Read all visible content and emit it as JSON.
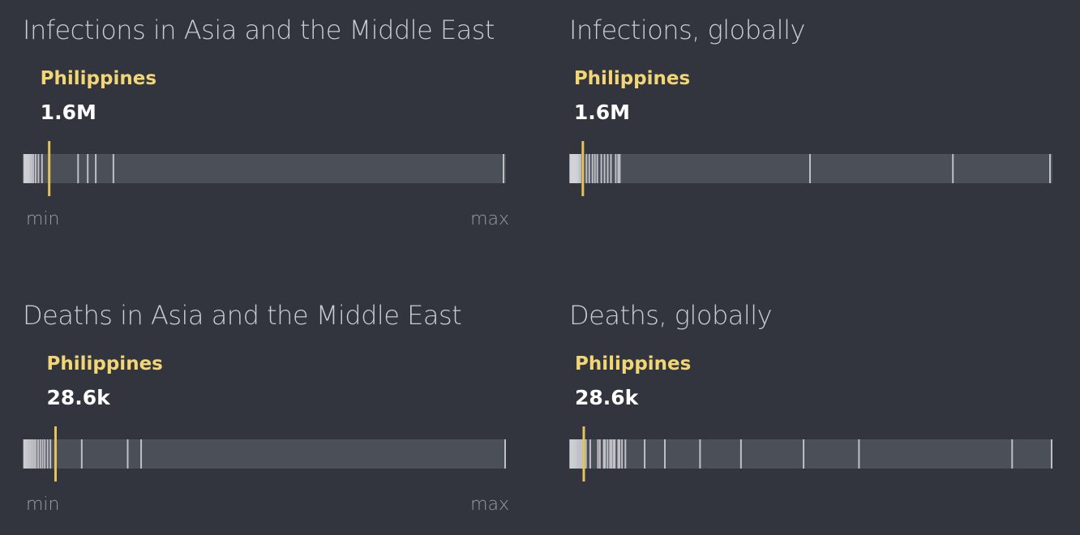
{
  "chart_data": [
    {
      "type": "strip",
      "title": "Infections in Asia and the Middle East",
      "highlight": {
        "label": "Philippines",
        "value_label": "1.6M",
        "value": 1600000
      },
      "axis_labels": {
        "min": "min",
        "max": "max"
      },
      "xlim": [
        0,
        30000000
      ],
      "values": [
        40000,
        90000,
        140000,
        190000,
        240000,
        300000,
        360000,
        430000,
        520000,
        620000,
        760000,
        930000,
        1150000,
        1600000,
        3400000,
        4000000,
        4500000,
        5600000,
        29900000
      ]
    },
    {
      "type": "strip",
      "title": "Infections, globally",
      "highlight": {
        "label": "Philippines",
        "value_label": "1.6M",
        "value": 1600000
      },
      "axis_labels": {
        "min": "",
        "max": ""
      },
      "xlim": [
        0,
        60000000
      ],
      "values": [
        30000,
        80000,
        130000,
        180000,
        230000,
        280000,
        330000,
        380000,
        440000,
        500000,
        570000,
        640000,
        720000,
        800000,
        900000,
        1000000,
        1150000,
        1300000,
        1600000,
        2050000,
        2400000,
        2800000,
        3100000,
        3400000,
        3900000,
        4300000,
        4700000,
        5100000,
        5700000,
        6000000,
        6200000,
        29900000,
        47700000,
        59800000
      ]
    },
    {
      "type": "strip",
      "title": "Deaths in Asia and the Middle East",
      "highlight": {
        "label": "Philippines",
        "value_label": "28.6k",
        "value": 28600
      },
      "axis_labels": {
        "min": "min",
        "max": "max"
      },
      "xlim": [
        0,
        430000
      ],
      "values": [
        500,
        1200,
        2000,
        3000,
        4000,
        5200,
        6500,
        8000,
        9500,
        11000,
        13000,
        15000,
        17000,
        19000,
        21500,
        24000,
        28600,
        52000,
        93000,
        105000,
        430000
      ]
    },
    {
      "type": "strip",
      "title": "Deaths, globally",
      "highlight": {
        "label": "Philippines",
        "value_label": "28.6k",
        "value": 28600
      },
      "axis_labels": {
        "min": "",
        "max": ""
      },
      "xlim": [
        0,
        1000000
      ],
      "values": [
        500,
        1500,
        3000,
        5000,
        7000,
        9000,
        11000,
        13000,
        16000,
        19000,
        22000,
        25000,
        28600,
        33000,
        42000,
        58000,
        62000,
        70000,
        73000,
        78000,
        83000,
        86000,
        90000,
        93000,
        100000,
        103000,
        108000,
        115000,
        155000,
        197000,
        270000,
        355000,
        485000,
        600000,
        918000,
        1000000
      ]
    }
  ],
  "colors": {
    "background": "#32353d",
    "track": "#4b4f58",
    "tick": "#d2d4d8",
    "highlight": "#e6c25a",
    "highlight_label": "#f2d675"
  }
}
